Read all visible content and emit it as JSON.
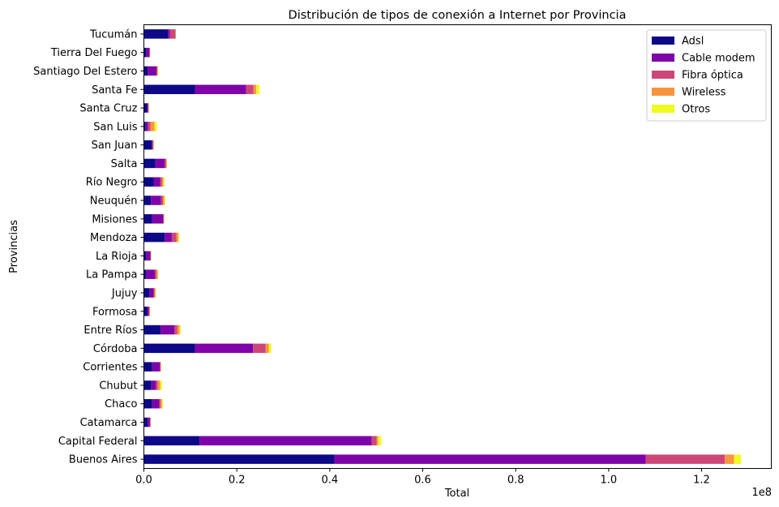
{
  "chart_data": {
    "type": "bar",
    "orientation": "horizontal",
    "stacked": true,
    "title": "Distribución de tipos de conexión a Internet por Provincia",
    "xlabel": "Total",
    "ylabel": "Provincias",
    "x_scale_label": "1e8",
    "xlim": [
      0,
      135000000
    ],
    "x_ticks": [
      0,
      20000000,
      40000000,
      60000000,
      80000000,
      100000000,
      120000000
    ],
    "x_tick_labels": [
      "0.0",
      "0.2",
      "0.4",
      "0.6",
      "0.8",
      "1.0",
      "1.2"
    ],
    "grid": false,
    "legend_position": "top-right",
    "categories": [
      "Buenos Aires",
      "Capital Federal",
      "Catamarca",
      "Chaco",
      "Chubut",
      "Corrientes",
      "Córdoba",
      "Entre Ríos",
      "Formosa",
      "Jujuy",
      "La Pampa",
      "La Rioja",
      "Mendoza",
      "Misiones",
      "Neuquén",
      "Río Negro",
      "Salta",
      "San Juan",
      "San Luis",
      "Santa Cruz",
      "Santa Fe",
      "Santiago Del Estero",
      "Tierra Del Fuego",
      "Tucumán"
    ],
    "series": [
      {
        "name": "Adsl",
        "color": "#0d0887",
        "values": [
          41000000,
          12000000,
          800000,
          1800000,
          1600000,
          1800000,
          11000000,
          3600000,
          700000,
          1200000,
          500000,
          500000,
          4500000,
          1800000,
          1500000,
          2100000,
          2500000,
          1700000,
          400000,
          700000,
          11000000,
          800000,
          500000,
          5200000
        ]
      },
      {
        "name": "Cable modem",
        "color": "#7e03a8",
        "values": [
          67000000,
          37000000,
          500000,
          1500000,
          1000000,
          1600000,
          12500000,
          3000000,
          400000,
          900000,
          1900000,
          900000,
          1500000,
          2300000,
          2200000,
          1400000,
          2000000,
          200000,
          500000,
          200000,
          11000000,
          1900000,
          700000,
          400000
        ]
      },
      {
        "name": "Fibra óptica",
        "color": "#cc4778",
        "values": [
          17000000,
          1100000,
          100000,
          300000,
          400000,
          200000,
          2700000,
          600000,
          100000,
          200000,
          300000,
          100000,
          1000000,
          200000,
          400000,
          400000,
          300000,
          100000,
          500000,
          100000,
          1600000,
          200000,
          100000,
          1200000
        ]
      },
      {
        "name": "Wireless",
        "color": "#f89540",
        "values": [
          2000000,
          300000,
          50000,
          300000,
          500000,
          100000,
          700000,
          500000,
          100000,
          200000,
          300000,
          50000,
          400000,
          50000,
          300000,
          300000,
          100000,
          100000,
          900000,
          100000,
          600000,
          100000,
          50000,
          50000
        ]
      },
      {
        "name": "Otros",
        "color": "#f0f921",
        "values": [
          1500000,
          700000,
          50000,
          200000,
          400000,
          50000,
          500000,
          200000,
          50000,
          100000,
          100000,
          50000,
          200000,
          50000,
          200000,
          200000,
          100000,
          50000,
          500000,
          50000,
          700000,
          100000,
          50000,
          50000
        ]
      }
    ]
  }
}
